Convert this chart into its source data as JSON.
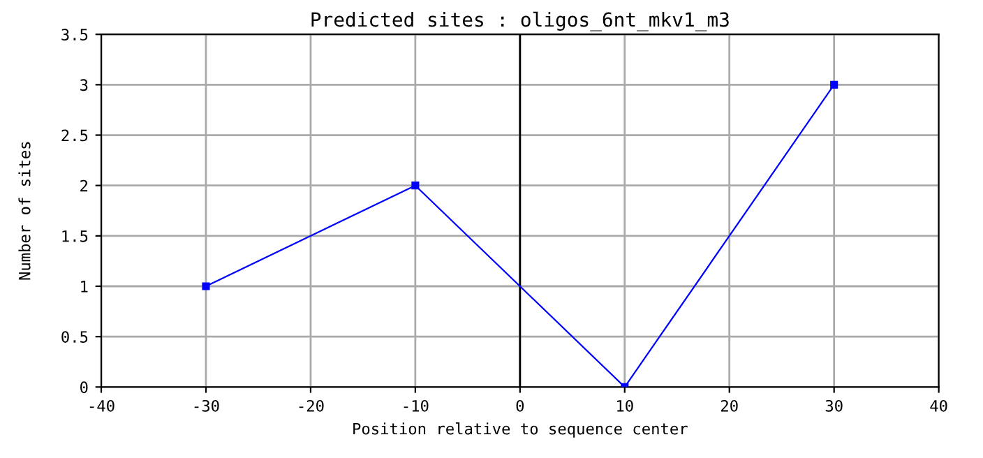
{
  "chart_data": {
    "type": "line",
    "title": "Predicted sites : oligos_6nt_mkv1_m3",
    "xlabel": "Position relative to sequence center",
    "ylabel": "Number of sites",
    "x": [
      -30,
      -10,
      10,
      30
    ],
    "series": [
      {
        "color": "#0000ff",
        "values": [
          1,
          2,
          0,
          3
        ]
      }
    ],
    "xlim": [
      -40,
      40
    ],
    "xticks": [
      -40,
      -30,
      -20,
      -10,
      0,
      10,
      20,
      30,
      40
    ],
    "ylim": [
      0,
      3.5
    ],
    "yticks": [
      0,
      0.5,
      1,
      1.5,
      2,
      2.5,
      3,
      3.5
    ],
    "grid": true,
    "marker": "square",
    "line_style": "solid",
    "ref_lines": [
      {
        "axis": "x",
        "value": 0,
        "color": "#000000"
      }
    ]
  }
}
